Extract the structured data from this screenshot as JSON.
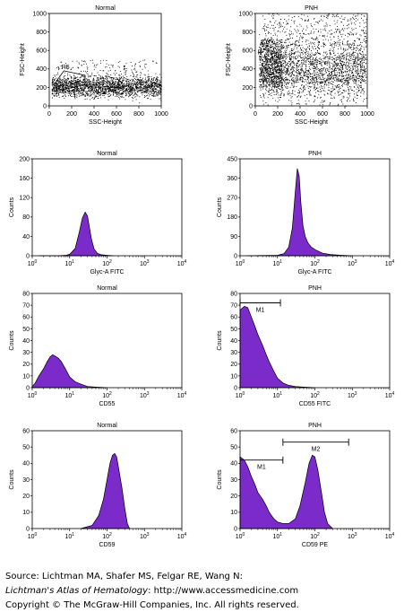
{
  "colors": {
    "fill": "#7a2bc9",
    "stroke": "#000000",
    "dots": "#000000"
  },
  "chart_data": [
    {
      "id": "a",
      "type": "scatter",
      "title": "Normal",
      "xlabel": "SSC-Height",
      "ylabel": "FSC-Height",
      "xlim": [
        0,
        1000
      ],
      "ylim": [
        0,
        1000
      ],
      "xticks": [
        0,
        200,
        400,
        600,
        800,
        1000
      ],
      "yticks": [
        0,
        200,
        400,
        600,
        800,
        1000
      ],
      "gate_label": "R5",
      "distribution": "dense band at FSC 100-350 across SSC 0-1000"
    },
    {
      "id": "b",
      "type": "scatter",
      "title": "PNH",
      "xlabel": "SSC-Height",
      "ylabel": "FSC-Height",
      "xlim": [
        0,
        1000
      ],
      "ylim": [
        0,
        1000
      ],
      "xticks": [
        0,
        200,
        400,
        600,
        800,
        1000
      ],
      "yticks": [
        0,
        200,
        400,
        600,
        800,
        1000
      ],
      "gate_label": "R",
      "distribution": "dense band at FSC 150-700 with sparse spread to 1000"
    },
    {
      "id": "c",
      "type": "area",
      "title": "Normal",
      "xlabel": "Glyc-A FITC",
      "ylabel": "Counts",
      "scale": "log",
      "xlim": [
        1,
        10000
      ],
      "ylim": [
        0,
        200
      ],
      "yticks": [
        0,
        40,
        80,
        120,
        160,
        200
      ],
      "x": [
        1.5,
        5,
        8,
        10,
        14,
        18,
        22,
        26,
        30,
        34,
        38,
        45,
        55,
        70,
        100,
        150
      ],
      "y": [
        0,
        0,
        1,
        3,
        15,
        48,
        78,
        90,
        82,
        58,
        35,
        14,
        5,
        2,
        1,
        0
      ]
    },
    {
      "id": "d",
      "type": "area",
      "title": "PNH",
      "xlabel": "Glyc-A FITC",
      "ylabel": "Counts",
      "scale": "log",
      "xlim": [
        1,
        10000
      ],
      "ylim": [
        0,
        450
      ],
      "yticks": [
        0,
        90,
        180,
        270,
        360,
        450
      ],
      "x": [
        1.5,
        10,
        15,
        20,
        25,
        30,
        34,
        38,
        42,
        48,
        55,
        65,
        80,
        110,
        160,
        260,
        500,
        1000
      ],
      "y": [
        0,
        2,
        10,
        40,
        130,
        300,
        405,
        370,
        250,
        140,
        90,
        60,
        40,
        25,
        12,
        6,
        2,
        0
      ]
    },
    {
      "id": "e",
      "type": "area",
      "title": "Normal",
      "xlabel": "CD55",
      "ylabel": "Counts",
      "scale": "log",
      "xlim": [
        1,
        10000
      ],
      "ylim": [
        0,
        80
      ],
      "yticks": [
        0,
        10,
        20,
        30,
        40,
        50,
        60,
        70,
        80
      ],
      "x": [
        1,
        1.2,
        1.5,
        2,
        2.5,
        3,
        3.5,
        4,
        5,
        6,
        8,
        10,
        14,
        20,
        30,
        50,
        100
      ],
      "y": [
        1,
        4,
        10,
        16,
        22,
        26,
        28,
        27,
        25,
        22,
        15,
        9,
        5,
        3,
        1,
        0.5,
        0
      ]
    },
    {
      "id": "f",
      "type": "area",
      "title": "PNH",
      "xlabel": "CD55 FITC",
      "ylabel": "Counts",
      "scale": "log",
      "xlim": [
        1,
        10000
      ],
      "ylim": [
        0,
        80
      ],
      "yticks": [
        0,
        10,
        20,
        30,
        40,
        50,
        60,
        70,
        80
      ],
      "x": [
        1,
        1.3,
        1.6,
        2,
        2.5,
        3,
        4,
        5,
        6,
        8,
        10,
        14,
        20,
        30,
        50,
        100
      ],
      "y": [
        66,
        69,
        68,
        60,
        52,
        45,
        36,
        28,
        22,
        14,
        8,
        4,
        2,
        1,
        0.5,
        0
      ],
      "markers": [
        {
          "label": "M1",
          "from": 1,
          "to": 12,
          "y": 72
        }
      ]
    },
    {
      "id": "g",
      "type": "area",
      "title": "Normal",
      "xlabel": "CD59",
      "ylabel": "Counts",
      "scale": "log",
      "xlim": [
        1,
        10000
      ],
      "ylim": [
        0,
        60
      ],
      "yticks": [
        0,
        10,
        20,
        30,
        40,
        50,
        60
      ],
      "x": [
        20,
        40,
        60,
        80,
        100,
        120,
        140,
        160,
        180,
        200,
        250,
        300,
        350,
        400
      ],
      "y": [
        0,
        2,
        8,
        18,
        30,
        40,
        45,
        46,
        44,
        38,
        25,
        12,
        3,
        0
      ]
    },
    {
      "id": "h",
      "type": "area",
      "title": "PNH",
      "xlabel": "CD59 PE",
      "ylabel": "Counts",
      "scale": "log",
      "xlim": [
        1,
        10000
      ],
      "ylim": [
        0,
        60
      ],
      "yticks": [
        0,
        10,
        20,
        30,
        40,
        50,
        60
      ],
      "x": [
        1,
        1.3,
        1.6,
        2,
        2.5,
        3,
        4,
        5,
        6,
        8,
        10,
        14,
        20,
        30,
        40,
        55,
        70,
        85,
        100,
        120,
        150,
        180,
        220,
        300
      ],
      "y": [
        44,
        42,
        38,
        32,
        27,
        22,
        18,
        14,
        10,
        6,
        4,
        3,
        3,
        6,
        14,
        28,
        40,
        45,
        44,
        36,
        22,
        10,
        3,
        0
      ],
      "markers": [
        {
          "label": "M1",
          "from": 1,
          "to": 14,
          "y": 42
        },
        {
          "label": "M2",
          "from": 14,
          "to": 800,
          "y": 53
        }
      ]
    }
  ],
  "footer": {
    "source_line": "Source: Lichtman MA, Shafer MS, Felgar RE, Wang N:",
    "book_title": "Lichtman's Atlas of Hematology",
    "url_part": ": http://www.accessmedicine.com",
    "copyright": "Copyright © The McGraw-Hill Companies, Inc. All rights reserved."
  }
}
